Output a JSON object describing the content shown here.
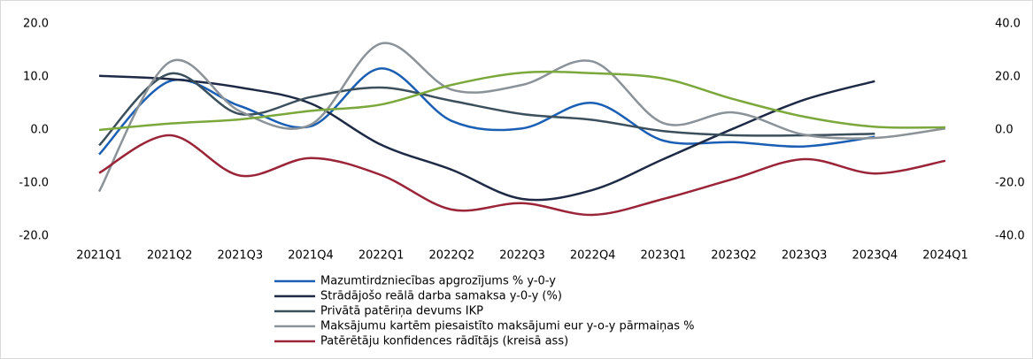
{
  "chart_data": {
    "type": "line",
    "categories": [
      "2021Q1",
      "2021Q2",
      "2021Q3",
      "2021Q4",
      "2022Q1",
      "2022Q2",
      "2022Q3",
      "2022Q4",
      "2023Q1",
      "2023Q2",
      "2023Q3",
      "2023Q4",
      "2024Q1"
    ],
    "ylim": [
      -20,
      20
    ],
    "yticks": [
      {
        "value": -20,
        "label": "-20.0"
      },
      {
        "value": -10,
        "label": "-10.0"
      },
      {
        "value": 0,
        "label": "0.0"
      },
      {
        "value": 10,
        "label": "10.0"
      },
      {
        "value": 20,
        "label": "20.0"
      }
    ],
    "y2lim": [
      -40,
      40
    ],
    "y2ticks": [
      {
        "value": -40,
        "label": "-40.0"
      },
      {
        "value": -20,
        "label": "-20.0"
      },
      {
        "value": 0,
        "label": "0.0"
      },
      {
        "value": 20,
        "label": "20.0"
      },
      {
        "value": 40,
        "label": "40.0"
      }
    ],
    "series": [
      {
        "name": "Mazumtirdzniecības apgrozījums % y-0-y",
        "color": "#1b5fb5",
        "axis": "y2",
        "values": [
          -9.2,
          18.4,
          9,
          1.4,
          23.2,
          3.4,
          0.6,
          10.2,
          -4,
          -4.6,
          -6.2,
          -2.6,
          null
        ]
      },
      {
        "name": "Strādājošo reālā darba samaksa y-0-y (%)",
        "color": "#1e2a45",
        "axis": "y2",
        "values": [
          20.4,
          19.2,
          16,
          10,
          -5.6,
          -15,
          -26,
          -22.6,
          -11,
          0.6,
          11.4,
          18.4,
          null
        ]
      },
      {
        "name": "Privātā patēriņa devums IKP",
        "color": "#3b4f5c",
        "axis": "y2",
        "values": [
          -5.8,
          21.2,
          6,
          12.4,
          16,
          11,
          6,
          3.8,
          -0.4,
          -2,
          -2,
          -1.4,
          null
        ]
      },
      {
        "name": "Maksājumu kartēm piesaistīto maksājumi eur y-o-y pārmaiņas %",
        "color": "#8b9298",
        "axis": "y2",
        "values": [
          -23.2,
          25.6,
          7,
          2,
          32.6,
          15.2,
          17,
          25.8,
          2.6,
          6.6,
          -1.8,
          -3,
          0.6
        ]
      },
      {
        "color": "#7ba83c",
        "axis": "y2",
        "values": [
          0,
          2.4,
          4,
          7.2,
          9.6,
          17,
          21.6,
          21.4,
          19.4,
          11.6,
          5,
          1.2,
          1
        ]
      },
      {
        "name": "Patērētāju konfidences rādītājs (kreisā ass)",
        "color": "#9a2438",
        "values": [
          -8.1,
          -1,
          -8.6,
          -5.3,
          -8.5,
          -15,
          -13.8,
          -16,
          -13,
          -9.2,
          -5.5,
          -8.2,
          -5.8
        ]
      }
    ]
  }
}
